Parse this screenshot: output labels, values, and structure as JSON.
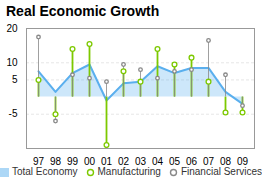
{
  "chart_data": {
    "type": "line",
    "title": "Real Economic Growth",
    "categories": [
      "97",
      "98",
      "99",
      "00",
      "01",
      "02",
      "03",
      "04",
      "05",
      "06",
      "07",
      "08",
      "09"
    ],
    "series": [
      {
        "name": "Total Economy",
        "type": "area",
        "color": "#5aafee",
        "values": [
          7.5,
          1.5,
          7.0,
          9.5,
          -1.0,
          4.0,
          4.5,
          9.0,
          7.0,
          8.5,
          8.5,
          1.5,
          -2.0
        ]
      },
      {
        "name": "Manufacturing",
        "type": "lollipop",
        "marker": "o",
        "color": "#7dc900",
        "values": [
          5.0,
          -5.0,
          14.0,
          15.5,
          -14.0,
          7.5,
          4.5,
          14.0,
          9.5,
          11.5,
          4.5,
          -4.5,
          -4.5
        ]
      },
      {
        "name": "Financial Services",
        "type": "lollipop",
        "marker": "o",
        "color": "#888888",
        "values": [
          17.5,
          -7.0,
          6.5,
          5.5,
          4.5,
          9.5,
          8.0,
          5.5,
          7.5,
          8.0,
          16.5,
          6.5,
          -2.5
        ]
      }
    ],
    "ylim": [
      -15,
      20
    ],
    "yticks": [
      20,
      10,
      5,
      -5
    ],
    "grid": true,
    "legend": "bottom"
  }
}
